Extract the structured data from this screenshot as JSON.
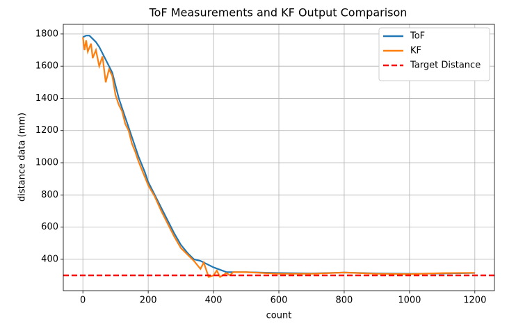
{
  "chart_data": {
    "type": "line",
    "title": "ToF Measurements and KF Output Comparison",
    "x_label": "count",
    "y_label": "distance data (mm)",
    "xlim": [
      -60,
      1260
    ],
    "ylim": [
      205,
      1860
    ],
    "xticks": [
      0,
      200,
      400,
      600,
      800,
      1000,
      1200
    ],
    "yticks": [
      400,
      600,
      800,
      1000,
      1200,
      1400,
      1600,
      1800
    ],
    "grid": true,
    "legend": "upper right",
    "series": [
      {
        "name": "ToF",
        "color": "#1f77b4",
        "x": [
          0,
          10,
          20,
          30,
          40,
          50,
          60,
          70,
          80,
          90,
          100,
          110,
          120,
          130,
          140,
          150,
          160,
          170,
          180,
          190,
          200,
          220,
          240,
          260,
          280,
          300,
          320,
          340,
          360,
          380,
          400,
          420,
          440,
          460,
          500,
          600,
          700,
          800,
          900,
          1000,
          1100,
          1200
        ],
        "values": [
          1780,
          1790,
          1790,
          1770,
          1750,
          1720,
          1680,
          1640,
          1600,
          1560,
          1480,
          1400,
          1340,
          1280,
          1220,
          1160,
          1100,
          1040,
          990,
          940,
          880,
          800,
          720,
          640,
          560,
          490,
          440,
          400,
          390,
          370,
          350,
          335,
          320,
          320,
          320,
          315,
          312,
          318,
          312,
          310,
          312,
          315
        ]
      },
      {
        "name": "KF",
        "color": "#ff7f0e",
        "x": [
          0,
          5,
          10,
          15,
          25,
          30,
          40,
          50,
          60,
          70,
          80,
          90,
          100,
          110,
          120,
          130,
          140,
          150,
          160,
          170,
          180,
          190,
          200,
          220,
          240,
          260,
          280,
          300,
          320,
          340,
          360,
          370,
          385,
          400,
          410,
          420,
          440,
          450,
          460,
          500,
          600,
          700,
          800,
          900,
          1000,
          1100,
          1200
        ],
        "values": [
          1780,
          1700,
          1760,
          1690,
          1740,
          1650,
          1700,
          1600,
          1660,
          1500,
          1580,
          1540,
          1420,
          1360,
          1320,
          1240,
          1200,
          1120,
          1070,
          1010,
          960,
          910,
          860,
          790,
          700,
          620,
          540,
          470,
          430,
          390,
          340,
          380,
          290,
          300,
          330,
          290,
          315,
          300,
          320,
          320,
          310,
          310,
          318,
          310,
          308,
          314,
          316
        ]
      }
    ],
    "hlines": [
      {
        "name": "Target Distance",
        "color": "#ff0000",
        "value": 300
      }
    ]
  }
}
